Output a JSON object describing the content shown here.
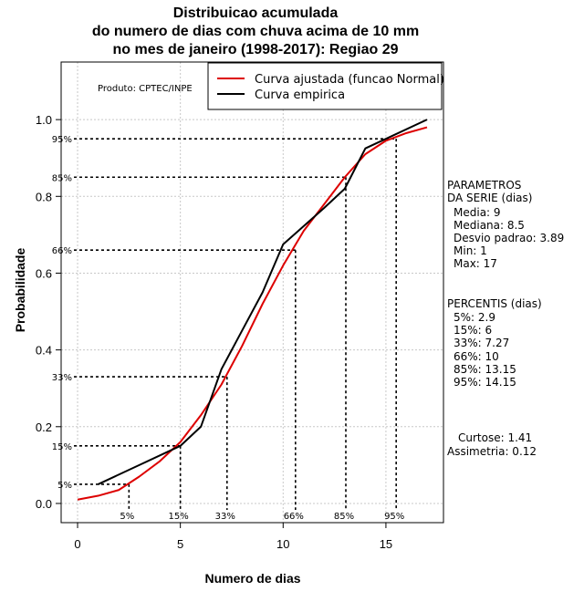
{
  "title": {
    "line1": "Distribuicao acumulada",
    "line2": "do numero de dias com chuva acima de 10 mm",
    "line3": "no mes de janeiro (1998-2017): Regiao 29"
  },
  "product": "Produto: CPTEC/INPE",
  "colors": {
    "fitted": "#dd0000",
    "empirical": "#000000"
  },
  "chart_data": {
    "type": "line",
    "xlabel": "Numero de dias",
    "ylabel": "Probabilidade",
    "xlim": [
      -0.8,
      17.8
    ],
    "ylim": [
      -0.05,
      1.15
    ],
    "xticks": [
      0,
      5,
      10,
      15
    ],
    "yticks": [
      0.0,
      0.2,
      0.4,
      0.6,
      0.8,
      1.0
    ],
    "ytick_labels": [
      "0.0",
      "0.2",
      "0.4",
      "0.6",
      "0.8",
      "1.0"
    ],
    "grid": true,
    "legend": [
      "Curva ajustada (funcao Normal)",
      "Curva empirica"
    ],
    "series": [
      {
        "name": "Curva ajustada (funcao Normal)",
        "color": "#dd0000",
        "x": [
          0,
          1,
          2,
          3,
          4,
          5,
          6,
          7,
          8,
          9,
          10,
          11,
          12,
          13,
          14,
          15,
          16,
          17
        ],
        "y": [
          0.01,
          0.02,
          0.035,
          0.07,
          0.11,
          0.16,
          0.23,
          0.31,
          0.41,
          0.52,
          0.62,
          0.71,
          0.78,
          0.85,
          0.91,
          0.945,
          0.965,
          0.98
        ]
      },
      {
        "name": "Curva empirica",
        "color": "#000000",
        "x": [
          1,
          3,
          5,
          6,
          7,
          8,
          9,
          10,
          12,
          13,
          14,
          15,
          17
        ],
        "y": [
          0.05,
          0.1,
          0.15,
          0.2,
          0.35,
          0.45,
          0.55,
          0.675,
          0.77,
          0.82,
          0.925,
          0.95,
          1.0
        ]
      }
    ],
    "percentile_lines": [
      {
        "label": "5%",
        "x": 2.5,
        "y": 0.05
      },
      {
        "label": "15%",
        "x": 5.0,
        "y": 0.15
      },
      {
        "label": "33%",
        "x": 7.27,
        "y": 0.33
      },
      {
        "label": "66%",
        "x": 10.6,
        "y": 0.66
      },
      {
        "label": "85%",
        "x": 13.05,
        "y": 0.85
      },
      {
        "label": "95%",
        "x": 15.5,
        "y": 0.95
      }
    ]
  },
  "parametros": {
    "header1": "PARAMETROS",
    "header2": "DA SERIE (dias)",
    "lines": [
      "Media: 9",
      "Mediana: 8.5",
      "Desvio padrao: 3.89",
      "Min: 1",
      "Max: 17"
    ]
  },
  "percentis": {
    "header": "PERCENTIS (dias)",
    "lines": [
      "5%: 2.9",
      "15%: 6",
      "33%: 7.27",
      "66%: 10",
      "85%: 13.15",
      "95%: 14.15"
    ]
  },
  "stats": {
    "curtose": "Curtose: 1.41",
    "assimetria": "Assimetria: 0.12"
  }
}
